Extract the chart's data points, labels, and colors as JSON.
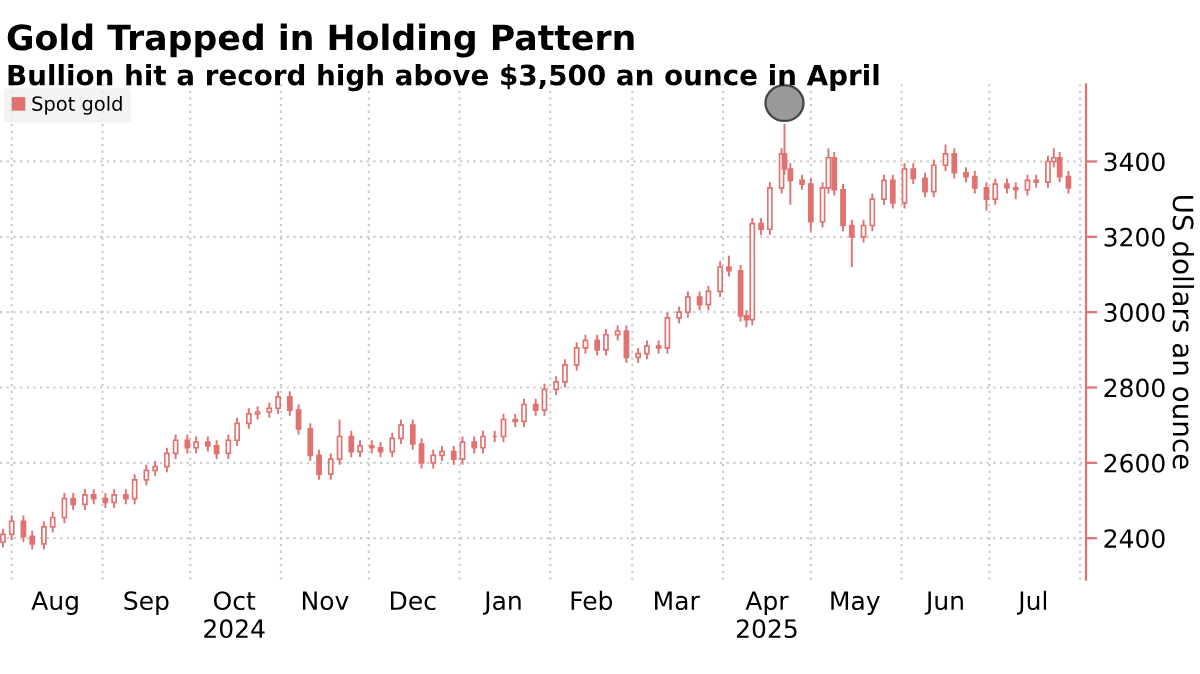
{
  "chart_data": {
    "type": "candlestick",
    "title": "Gold Trapped in Holding Pattern",
    "subtitle": "Bullion hit a record high above $3,500 an ounce in April",
    "ylabel": "US dollars an ounce",
    "series": [
      {
        "name": "Spot gold",
        "color": "#e07272",
        "x": [
          "2024-07-29",
          "2024-08-01",
          "2024-08-05",
          "2024-08-08",
          "2024-08-12",
          "2024-08-15",
          "2024-08-19",
          "2024-08-22",
          "2024-08-26",
          "2024-08-29",
          "2024-09-02",
          "2024-09-05",
          "2024-09-09",
          "2024-09-12",
          "2024-09-16",
          "2024-09-19",
          "2024-09-23",
          "2024-09-26",
          "2024-09-30",
          "2024-10-03",
          "2024-10-07",
          "2024-10-10",
          "2024-10-14",
          "2024-10-17",
          "2024-10-21",
          "2024-10-24",
          "2024-10-28",
          "2024-10-31",
          "2024-11-04",
          "2024-11-07",
          "2024-11-11",
          "2024-11-14",
          "2024-11-18",
          "2024-11-21",
          "2024-11-25",
          "2024-11-28",
          "2024-12-02",
          "2024-12-05",
          "2024-12-09",
          "2024-12-12",
          "2024-12-16",
          "2024-12-19",
          "2024-12-23",
          "2024-12-26",
          "2024-12-30",
          "2025-01-02",
          "2025-01-06",
          "2025-01-09",
          "2025-01-13",
          "2025-01-16",
          "2025-01-20",
          "2025-01-23",
          "2025-01-27",
          "2025-01-30",
          "2025-02-03",
          "2025-02-06",
          "2025-02-10",
          "2025-02-13",
          "2025-02-17",
          "2025-02-20",
          "2025-02-24",
          "2025-02-27",
          "2025-03-03",
          "2025-03-06",
          "2025-03-10",
          "2025-03-13",
          "2025-03-17",
          "2025-03-20",
          "2025-03-24",
          "2025-03-27",
          "2025-03-31",
          "2025-04-03",
          "2025-04-07",
          "2025-04-09",
          "2025-04-11",
          "2025-04-14",
          "2025-04-17",
          "2025-04-21",
          "2025-04-22",
          "2025-04-24",
          "2025-04-28",
          "2025-05-01",
          "2025-05-05",
          "2025-05-07",
          "2025-05-09",
          "2025-05-12",
          "2025-05-15",
          "2025-05-19",
          "2025-05-22",
          "2025-05-26",
          "2025-05-29",
          "2025-06-02",
          "2025-06-05",
          "2025-06-09",
          "2025-06-12",
          "2025-06-16",
          "2025-06-19",
          "2025-06-23",
          "2025-06-26",
          "2025-06-30",
          "2025-07-03",
          "2025-07-07",
          "2025-07-10",
          "2025-07-14",
          "2025-07-17",
          "2025-07-21",
          "2025-07-23",
          "2025-07-25",
          "2025-07-28"
        ],
        "ohlc": [
          [
            2390,
            2425,
            2375,
            2410
          ],
          [
            2410,
            2460,
            2395,
            2445
          ],
          [
            2445,
            2460,
            2390,
            2405
          ],
          [
            2405,
            2420,
            2370,
            2385
          ],
          [
            2385,
            2445,
            2370,
            2430
          ],
          [
            2430,
            2470,
            2415,
            2455
          ],
          [
            2455,
            2520,
            2440,
            2505
          ],
          [
            2505,
            2520,
            2475,
            2490
          ],
          [
            2490,
            2530,
            2475,
            2515
          ],
          [
            2515,
            2530,
            2490,
            2505
          ],
          [
            2505,
            2520,
            2480,
            2495
          ],
          [
            2495,
            2530,
            2480,
            2515
          ],
          [
            2515,
            2530,
            2490,
            2505
          ],
          [
            2505,
            2570,
            2490,
            2555
          ],
          [
            2555,
            2595,
            2540,
            2580
          ],
          [
            2580,
            2605,
            2565,
            2590
          ],
          [
            2590,
            2640,
            2575,
            2625
          ],
          [
            2625,
            2675,
            2610,
            2660
          ],
          [
            2660,
            2675,
            2625,
            2640
          ],
          [
            2640,
            2670,
            2625,
            2655
          ],
          [
            2655,
            2670,
            2630,
            2645
          ],
          [
            2645,
            2660,
            2610,
            2625
          ],
          [
            2625,
            2675,
            2610,
            2660
          ],
          [
            2660,
            2720,
            2645,
            2705
          ],
          [
            2705,
            2745,
            2690,
            2730
          ],
          [
            2730,
            2750,
            2715,
            2735
          ],
          [
            2735,
            2760,
            2720,
            2745
          ],
          [
            2745,
            2790,
            2730,
            2775
          ],
          [
            2775,
            2790,
            2725,
            2740
          ],
          [
            2740,
            2755,
            2675,
            2690
          ],
          [
            2690,
            2705,
            2605,
            2620
          ],
          [
            2620,
            2635,
            2555,
            2570
          ],
          [
            2570,
            2625,
            2555,
            2610
          ],
          [
            2610,
            2715,
            2595,
            2670
          ],
          [
            2670,
            2685,
            2615,
            2630
          ],
          [
            2630,
            2660,
            2615,
            2645
          ],
          [
            2645,
            2660,
            2625,
            2640
          ],
          [
            2640,
            2655,
            2615,
            2630
          ],
          [
            2630,
            2680,
            2615,
            2665
          ],
          [
            2665,
            2715,
            2650,
            2700
          ],
          [
            2700,
            2715,
            2635,
            2650
          ],
          [
            2650,
            2665,
            2585,
            2600
          ],
          [
            2600,
            2635,
            2585,
            2620
          ],
          [
            2620,
            2645,
            2605,
            2630
          ],
          [
            2630,
            2645,
            2595,
            2610
          ],
          [
            2610,
            2670,
            2595,
            2655
          ],
          [
            2655,
            2670,
            2625,
            2640
          ],
          [
            2640,
            2685,
            2625,
            2670
          ],
          [
            2670,
            2685,
            2655,
            2670
          ],
          [
            2670,
            2730,
            2655,
            2715
          ],
          [
            2715,
            2730,
            2695,
            2710
          ],
          [
            2710,
            2770,
            2695,
            2755
          ],
          [
            2755,
            2770,
            2725,
            2740
          ],
          [
            2740,
            2810,
            2725,
            2795
          ],
          [
            2795,
            2830,
            2780,
            2815
          ],
          [
            2815,
            2875,
            2800,
            2860
          ],
          [
            2860,
            2920,
            2845,
            2905
          ],
          [
            2905,
            2940,
            2890,
            2925
          ],
          [
            2925,
            2940,
            2885,
            2900
          ],
          [
            2900,
            2955,
            2885,
            2940
          ],
          [
            2940,
            2965,
            2925,
            2950
          ],
          [
            2950,
            2965,
            2865,
            2880
          ],
          [
            2880,
            2905,
            2865,
            2890
          ],
          [
            2890,
            2925,
            2875,
            2910
          ],
          [
            2910,
            2925,
            2890,
            2905
          ],
          [
            2905,
            3000,
            2890,
            2985
          ],
          [
            2985,
            3015,
            2970,
            3000
          ],
          [
            3000,
            3055,
            2985,
            3040
          ],
          [
            3040,
            3055,
            3005,
            3020
          ],
          [
            3020,
            3070,
            3005,
            3055
          ],
          [
            3055,
            3135,
            3040,
            3120
          ],
          [
            3120,
            3150,
            3095,
            3110
          ],
          [
            3110,
            3125,
            2975,
            2990
          ],
          [
            2990,
            3005,
            2960,
            2980
          ],
          [
            2980,
            3250,
            2965,
            3235
          ],
          [
            3235,
            3250,
            3205,
            3220
          ],
          [
            3220,
            3345,
            3205,
            3330
          ],
          [
            3330,
            3435,
            3315,
            3420
          ],
          [
            3420,
            3500,
            3365,
            3380
          ],
          [
            3380,
            3395,
            3285,
            3350
          ],
          [
            3350,
            3365,
            3325,
            3340
          ],
          [
            3340,
            3355,
            3215,
            3240
          ],
          [
            3240,
            3345,
            3225,
            3330
          ],
          [
            3330,
            3435,
            3315,
            3410
          ],
          [
            3410,
            3425,
            3310,
            3325
          ],
          [
            3325,
            3340,
            3215,
            3230
          ],
          [
            3230,
            3245,
            3120,
            3200
          ],
          [
            3200,
            3245,
            3185,
            3230
          ],
          [
            3230,
            3315,
            3215,
            3300
          ],
          [
            3300,
            3365,
            3285,
            3350
          ],
          [
            3350,
            3365,
            3275,
            3290
          ],
          [
            3290,
            3395,
            3275,
            3380
          ],
          [
            3380,
            3395,
            3340,
            3355
          ],
          [
            3355,
            3370,
            3305,
            3320
          ],
          [
            3320,
            3405,
            3305,
            3390
          ],
          [
            3390,
            3445,
            3375,
            3420
          ],
          [
            3420,
            3435,
            3355,
            3370
          ],
          [
            3370,
            3385,
            3345,
            3360
          ],
          [
            3360,
            3375,
            3315,
            3330
          ],
          [
            3330,
            3345,
            3270,
            3300
          ],
          [
            3300,
            3355,
            3285,
            3340
          ],
          [
            3340,
            3355,
            3315,
            3330
          ],
          [
            3330,
            3345,
            3300,
            3325
          ],
          [
            3325,
            3365,
            3310,
            3350
          ],
          [
            3350,
            3365,
            3330,
            3345
          ],
          [
            3345,
            3415,
            3330,
            3400
          ],
          [
            3400,
            3435,
            3385,
            3410
          ],
          [
            3410,
            3425,
            3345,
            3360
          ],
          [
            3360,
            3375,
            3315,
            3330
          ]
        ]
      }
    ],
    "xlim": [
      "2024-07-28",
      "2025-08-03"
    ],
    "xticks": [
      {
        "value": "2024-08-01",
        "label": null
      },
      {
        "value": "2024-08-16",
        "label": "Aug"
      },
      {
        "value": "2024-09-01",
        "label": null
      },
      {
        "value": "2024-09-16",
        "label": "Sep"
      },
      {
        "value": "2024-10-01",
        "label": null
      },
      {
        "value": "2024-10-16",
        "label": "Oct\n2024"
      },
      {
        "value": "2024-11-01",
        "label": null
      },
      {
        "value": "2024-11-16",
        "label": "Nov"
      },
      {
        "value": "2024-12-01",
        "label": null
      },
      {
        "value": "2024-12-16",
        "label": "Dec"
      },
      {
        "value": "2025-01-01",
        "label": null
      },
      {
        "value": "2025-01-16",
        "label": "Jan"
      },
      {
        "value": "2025-02-01",
        "label": null
      },
      {
        "value": "2025-02-15",
        "label": "Feb"
      },
      {
        "value": "2025-03-01",
        "label": null
      },
      {
        "value": "2025-03-16",
        "label": "Mar"
      },
      {
        "value": "2025-04-01",
        "label": null
      },
      {
        "value": "2025-04-16",
        "label": "Apr\n2025"
      },
      {
        "value": "2025-05-01",
        "label": null
      },
      {
        "value": "2025-05-16",
        "label": "May"
      },
      {
        "value": "2025-06-01",
        "label": null
      },
      {
        "value": "2025-06-16",
        "label": "Jun"
      },
      {
        "value": "2025-07-01",
        "label": null
      },
      {
        "value": "2025-07-16",
        "label": "Jul"
      },
      {
        "value": "2025-08-01",
        "label": null
      }
    ],
    "ylim": [
      2290,
      3605
    ],
    "yticks": [
      2400,
      2600,
      2800,
      3000,
      3200,
      3400
    ],
    "grid": true,
    "legend": "top left"
  }
}
